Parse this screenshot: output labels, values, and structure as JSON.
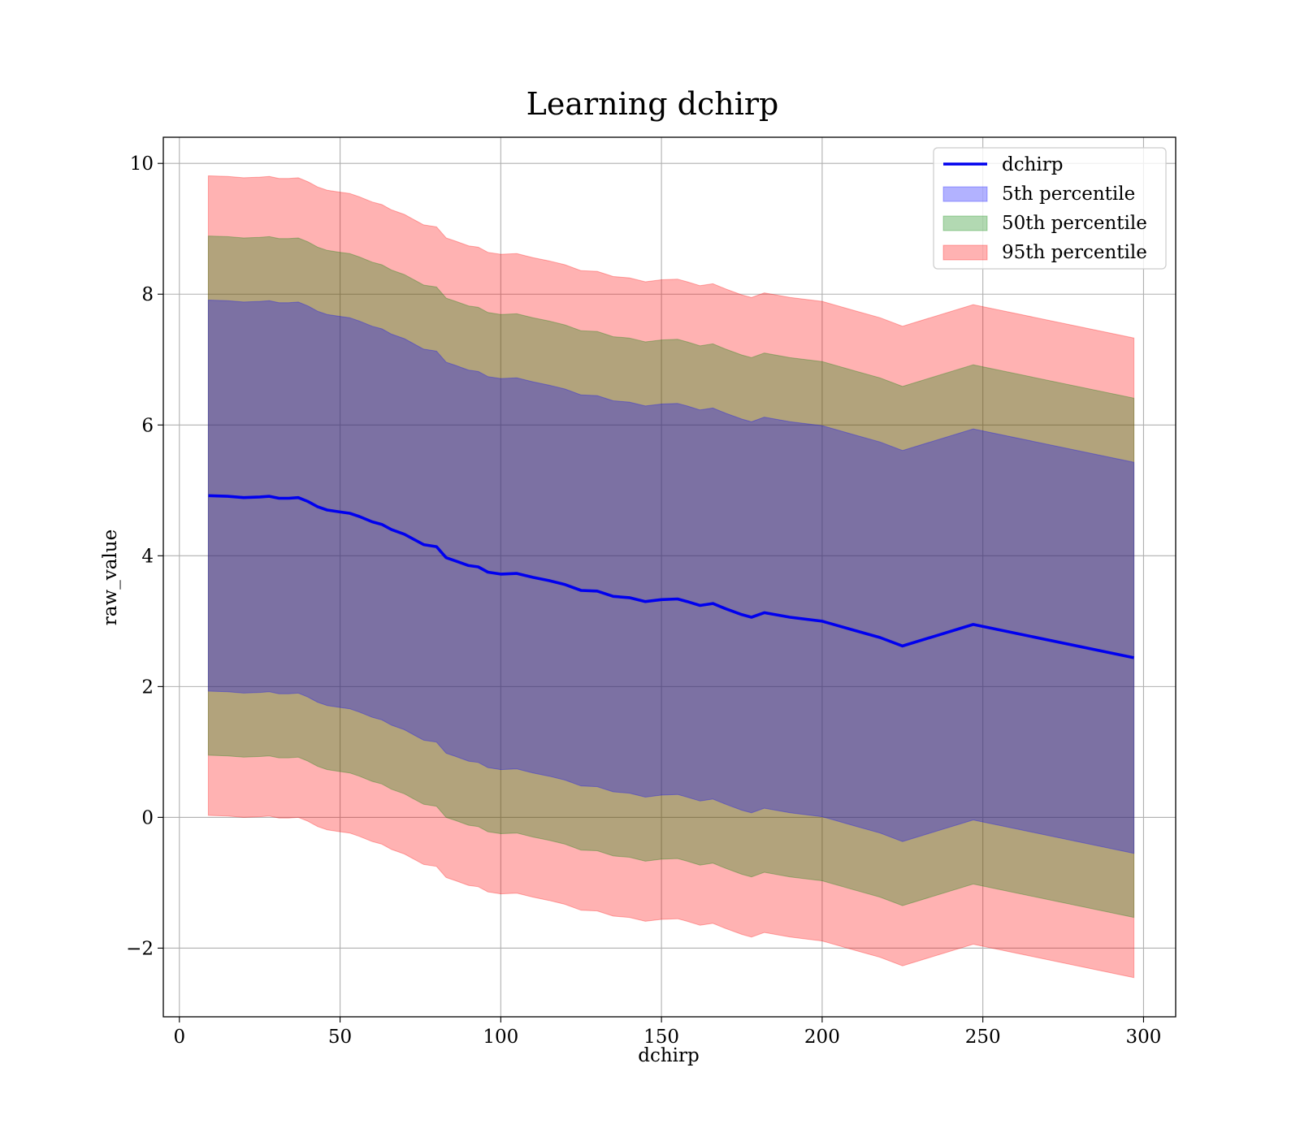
{
  "chart_data": {
    "type": "line",
    "title": "Learning dchirp",
    "xlabel": "dchirp",
    "ylabel": "raw_value",
    "xlim": [
      -5,
      310
    ],
    "ylim": [
      -3.05,
      10.4
    ],
    "xticks": [
      0,
      50,
      100,
      150,
      200,
      250,
      300
    ],
    "xtick_labels": [
      "0",
      "50",
      "100",
      "150",
      "200",
      "250",
      "300"
    ],
    "yticks": [
      -2,
      0,
      2,
      4,
      6,
      8,
      10
    ],
    "ytick_labels": [
      "−2",
      "0",
      "2",
      "4",
      "6",
      "8",
      "10"
    ],
    "grid": true,
    "legend_position": "top-right",
    "x": [
      9,
      15,
      20,
      25,
      28,
      31,
      34,
      37,
      40,
      43,
      46,
      50,
      53,
      56,
      60,
      63,
      66,
      70,
      73,
      76,
      80,
      83,
      86,
      90,
      93,
      96,
      100,
      105,
      110,
      115,
      120,
      125,
      130,
      135,
      140,
      145,
      150,
      155,
      158,
      162,
      166,
      170,
      175,
      178,
      182,
      190,
      200,
      210,
      218,
      225,
      247,
      297
    ],
    "series": [
      {
        "name": "dchirp",
        "kind": "line",
        "color": "#0000ee",
        "values": [
          4.92,
          4.91,
          4.89,
          4.9,
          4.91,
          4.88,
          4.88,
          4.89,
          4.83,
          4.75,
          4.7,
          4.67,
          4.65,
          4.6,
          4.52,
          4.48,
          4.4,
          4.33,
          4.25,
          4.17,
          4.14,
          3.97,
          3.92,
          3.85,
          3.83,
          3.75,
          3.72,
          3.73,
          3.67,
          3.62,
          3.56,
          3.47,
          3.46,
          3.38,
          3.36,
          3.3,
          3.33,
          3.34,
          3.3,
          3.24,
          3.27,
          3.19,
          3.1,
          3.06,
          3.13,
          3.06,
          3.0,
          2.86,
          2.75,
          2.62,
          2.95,
          2.44
        ]
      },
      {
        "name": "5th percentile",
        "kind": "band",
        "color": "#0000ff",
        "opacity": 0.3,
        "offset": 2.99
      },
      {
        "name": "50th percentile",
        "kind": "band",
        "color": "#008000",
        "opacity": 0.3,
        "offset": 3.97
      },
      {
        "name": "95th percentile",
        "kind": "band",
        "color": "#ff0000",
        "opacity": 0.3,
        "offset": 4.89
      }
    ]
  }
}
